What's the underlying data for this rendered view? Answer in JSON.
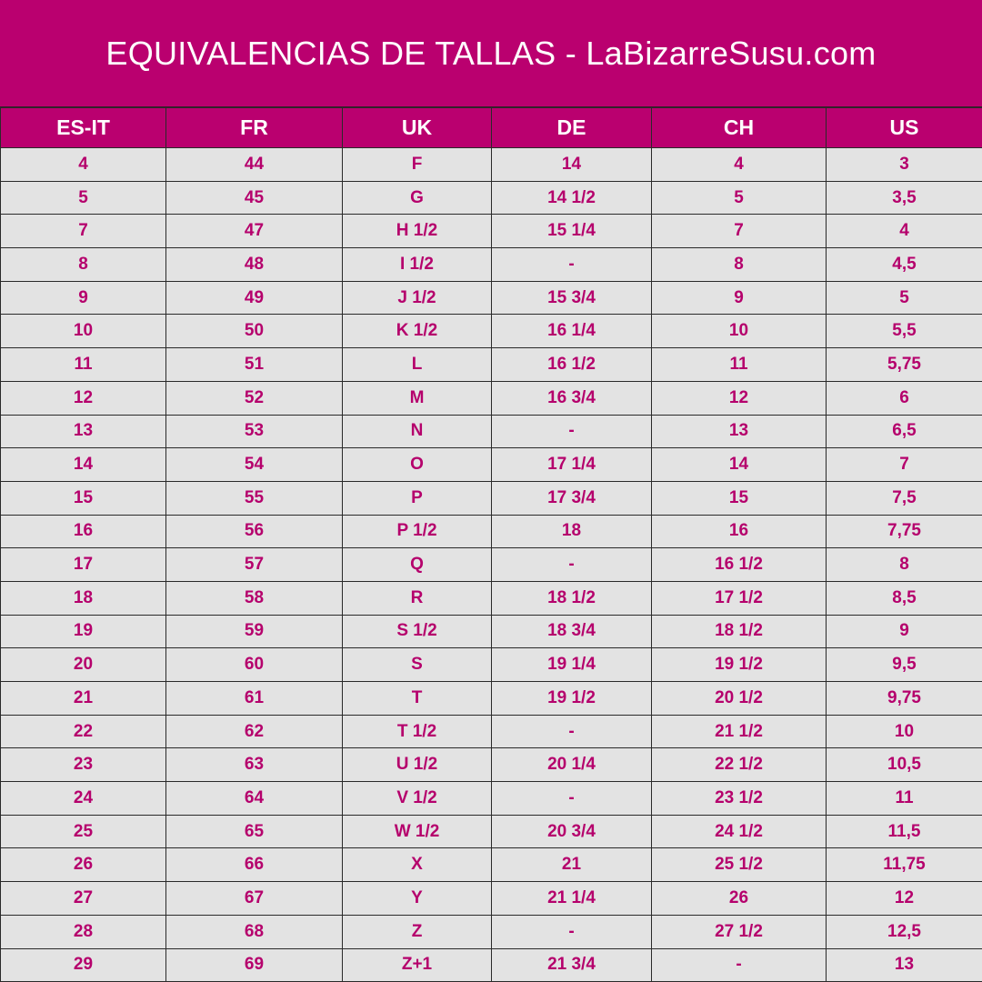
{
  "title": "EQUIVALENCIAS DE TALLAS - LaBizarreSusu.com",
  "colors": {
    "brand": "#ba006f",
    "cell_bg": "#e3e3e3",
    "cell_text": "#b5006c"
  },
  "headers": [
    "ES-IT",
    "FR",
    "UK",
    "DE",
    "CH",
    "US"
  ],
  "rows": [
    [
      "4",
      "44",
      "F",
      "14",
      "4",
      "3"
    ],
    [
      "5",
      "45",
      "G",
      "14 1/2",
      "5",
      "3,5"
    ],
    [
      "7",
      "47",
      "H 1/2",
      "15 1/4",
      "7",
      "4"
    ],
    [
      "8",
      "48",
      "I 1/2",
      "-",
      "8",
      "4,5"
    ],
    [
      "9",
      "49",
      "J 1/2",
      "15 3/4",
      "9",
      "5"
    ],
    [
      "10",
      "50",
      "K 1/2",
      "16 1/4",
      "10",
      "5,5"
    ],
    [
      "11",
      "51",
      "L",
      "16 1/2",
      "11",
      "5,75"
    ],
    [
      "12",
      "52",
      "M",
      "16 3/4",
      "12",
      "6"
    ],
    [
      "13",
      "53",
      "N",
      "-",
      "13",
      "6,5"
    ],
    [
      "14",
      "54",
      "O",
      "17 1/4",
      "14",
      "7"
    ],
    [
      "15",
      "55",
      "P",
      "17 3/4",
      "15",
      "7,5"
    ],
    [
      "16",
      "56",
      "P 1/2",
      "18",
      "16",
      "7,75"
    ],
    [
      "17",
      "57",
      "Q",
      "-",
      "16 1/2",
      "8"
    ],
    [
      "18",
      "58",
      "R",
      "18 1/2",
      "17 1/2",
      "8,5"
    ],
    [
      "19",
      "59",
      "S 1/2",
      "18 3/4",
      "18 1/2",
      "9"
    ],
    [
      "20",
      "60",
      "S",
      "19 1/4",
      "19 1/2",
      "9,5"
    ],
    [
      "21",
      "61",
      "T",
      "19 1/2",
      "20 1/2",
      "9,75"
    ],
    [
      "22",
      "62",
      "T 1/2",
      "-",
      "21 1/2",
      "10"
    ],
    [
      "23",
      "63",
      "U 1/2",
      "20 1/4",
      "22 1/2",
      "10,5"
    ],
    [
      "24",
      "64",
      "V 1/2",
      "-",
      "23 1/2",
      "11"
    ],
    [
      "25",
      "65",
      "W 1/2",
      "20 3/4",
      "24 1/2",
      "11,5"
    ],
    [
      "26",
      "66",
      "X",
      "21",
      "25 1/2",
      "11,75"
    ],
    [
      "27",
      "67",
      "Y",
      "21 1/4",
      "26",
      "12"
    ],
    [
      "28",
      "68",
      "Z",
      "-",
      "27 1/2",
      "12,5"
    ],
    [
      "29",
      "69",
      "Z+1",
      "21 3/4",
      "-",
      "13"
    ]
  ]
}
